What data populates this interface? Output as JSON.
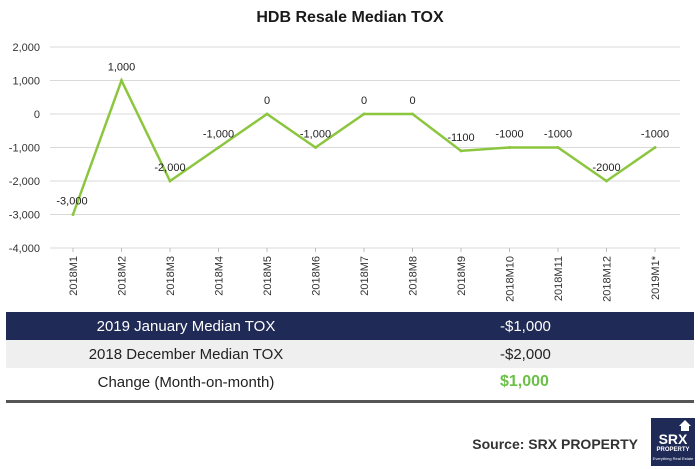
{
  "chart_data": {
    "type": "line",
    "title": "HDB Resale Median TOX",
    "categories": [
      "2018M1",
      "2018M2",
      "2018M3",
      "2018M4",
      "2018M5",
      "2018M6",
      "2018M7",
      "2018M8",
      "2018M9",
      "2018M10",
      "2018M11",
      "2018M12",
      "2019M1*"
    ],
    "series": [
      {
        "values": [
          -3000,
          1000,
          -2000,
          -1000,
          0,
          -1000,
          0,
          0,
          -1100,
          -1000,
          -1000,
          -2000,
          -1000
        ],
        "data_labels": [
          "-3,000",
          "1,000",
          "-2,000",
          "-1,000",
          "0",
          "-1,000",
          "0",
          "0",
          "-1100",
          "-1000",
          "-1000",
          "-2000",
          "-1000"
        ]
      }
    ],
    "y_ticks": [
      "2,000",
      "1,000",
      "0",
      "-1,000",
      "-2,000",
      "-3,000",
      "-4,000"
    ],
    "ylim": [
      -4000,
      2000
    ],
    "ytick_step": 1000,
    "grid": true,
    "legend": "none",
    "colors": {
      "line": "#8cc63f",
      "grid": "#d9d9d9",
      "axis": "#bfbfbf"
    }
  },
  "summary": [
    {
      "label": "2019 January Median TOX",
      "value": "-$1,000"
    },
    {
      "label": "2018 December Median TOX",
      "value": "-$2,000"
    },
    {
      "label": "Change (Month-on-month)",
      "value": "$1,000"
    }
  ],
  "colors": {
    "header_row": "#1f2a56",
    "alt_row": "#efefef",
    "positive": "#6cc04a"
  },
  "source": "Source:  SRX PROPERTY",
  "logo": {
    "brand": "SRX",
    "sub": "PROPERTY",
    "tagline": "Everything Real Estate",
    "icon": "house-icon"
  }
}
